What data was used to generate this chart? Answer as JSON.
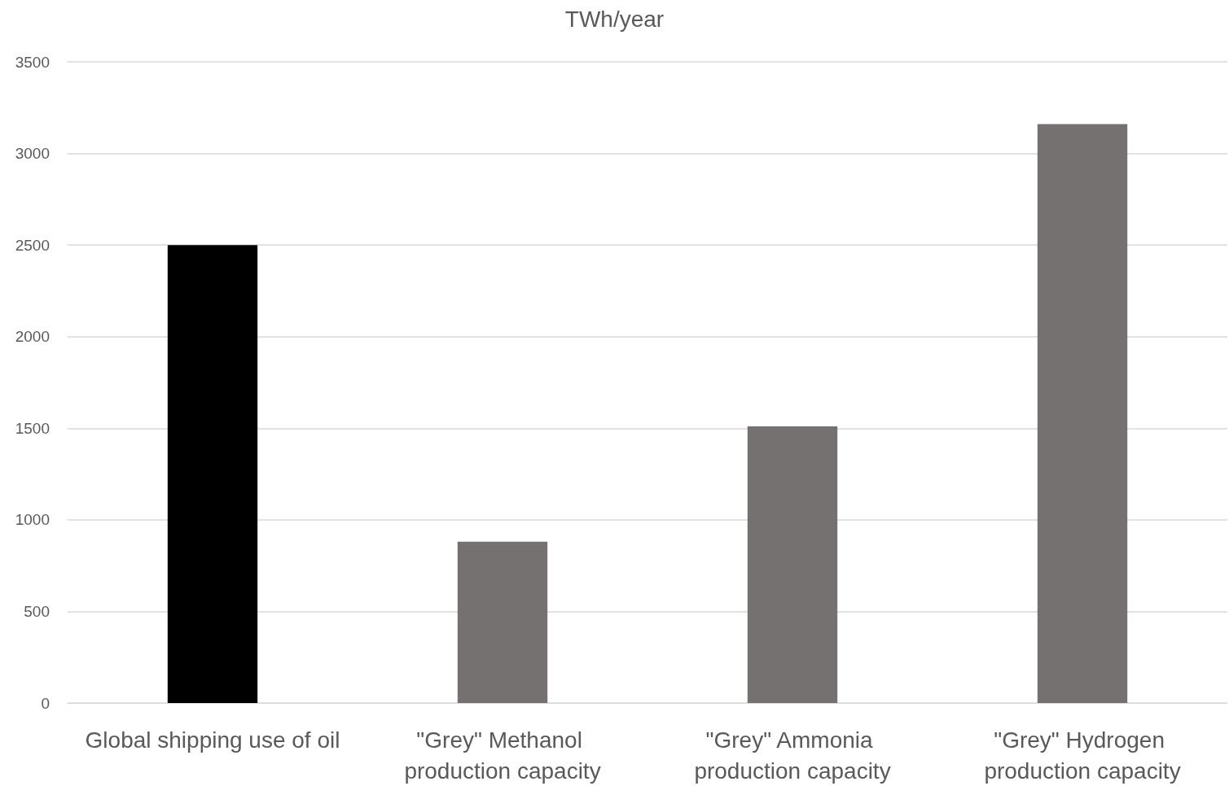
{
  "chart_data": {
    "type": "bar",
    "title": "TWh/year",
    "categories": [
      "Global shipping use of oil",
      "\"Grey\" Methanol production capacity",
      "\"Grey\" Ammonia production capacity",
      "\"Grey\" Hydrogen production capacity"
    ],
    "values": [
      2500,
      880,
      1510,
      3160
    ],
    "colors": [
      "#000000",
      "#767171",
      "#767171",
      "#767171"
    ],
    "ylim": [
      0,
      3500
    ],
    "yticks": [
      0,
      500,
      1000,
      1500,
      2000,
      2500,
      3000,
      3500
    ],
    "grid": "y"
  }
}
